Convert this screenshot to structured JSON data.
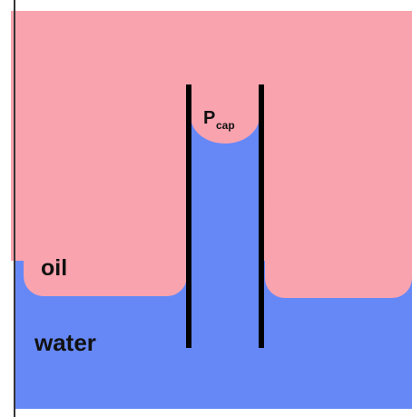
{
  "labels": {
    "oil": "oil",
    "water": "water",
    "pressure": {
      "main": "P",
      "subscript": "cap"
    }
  }
}
